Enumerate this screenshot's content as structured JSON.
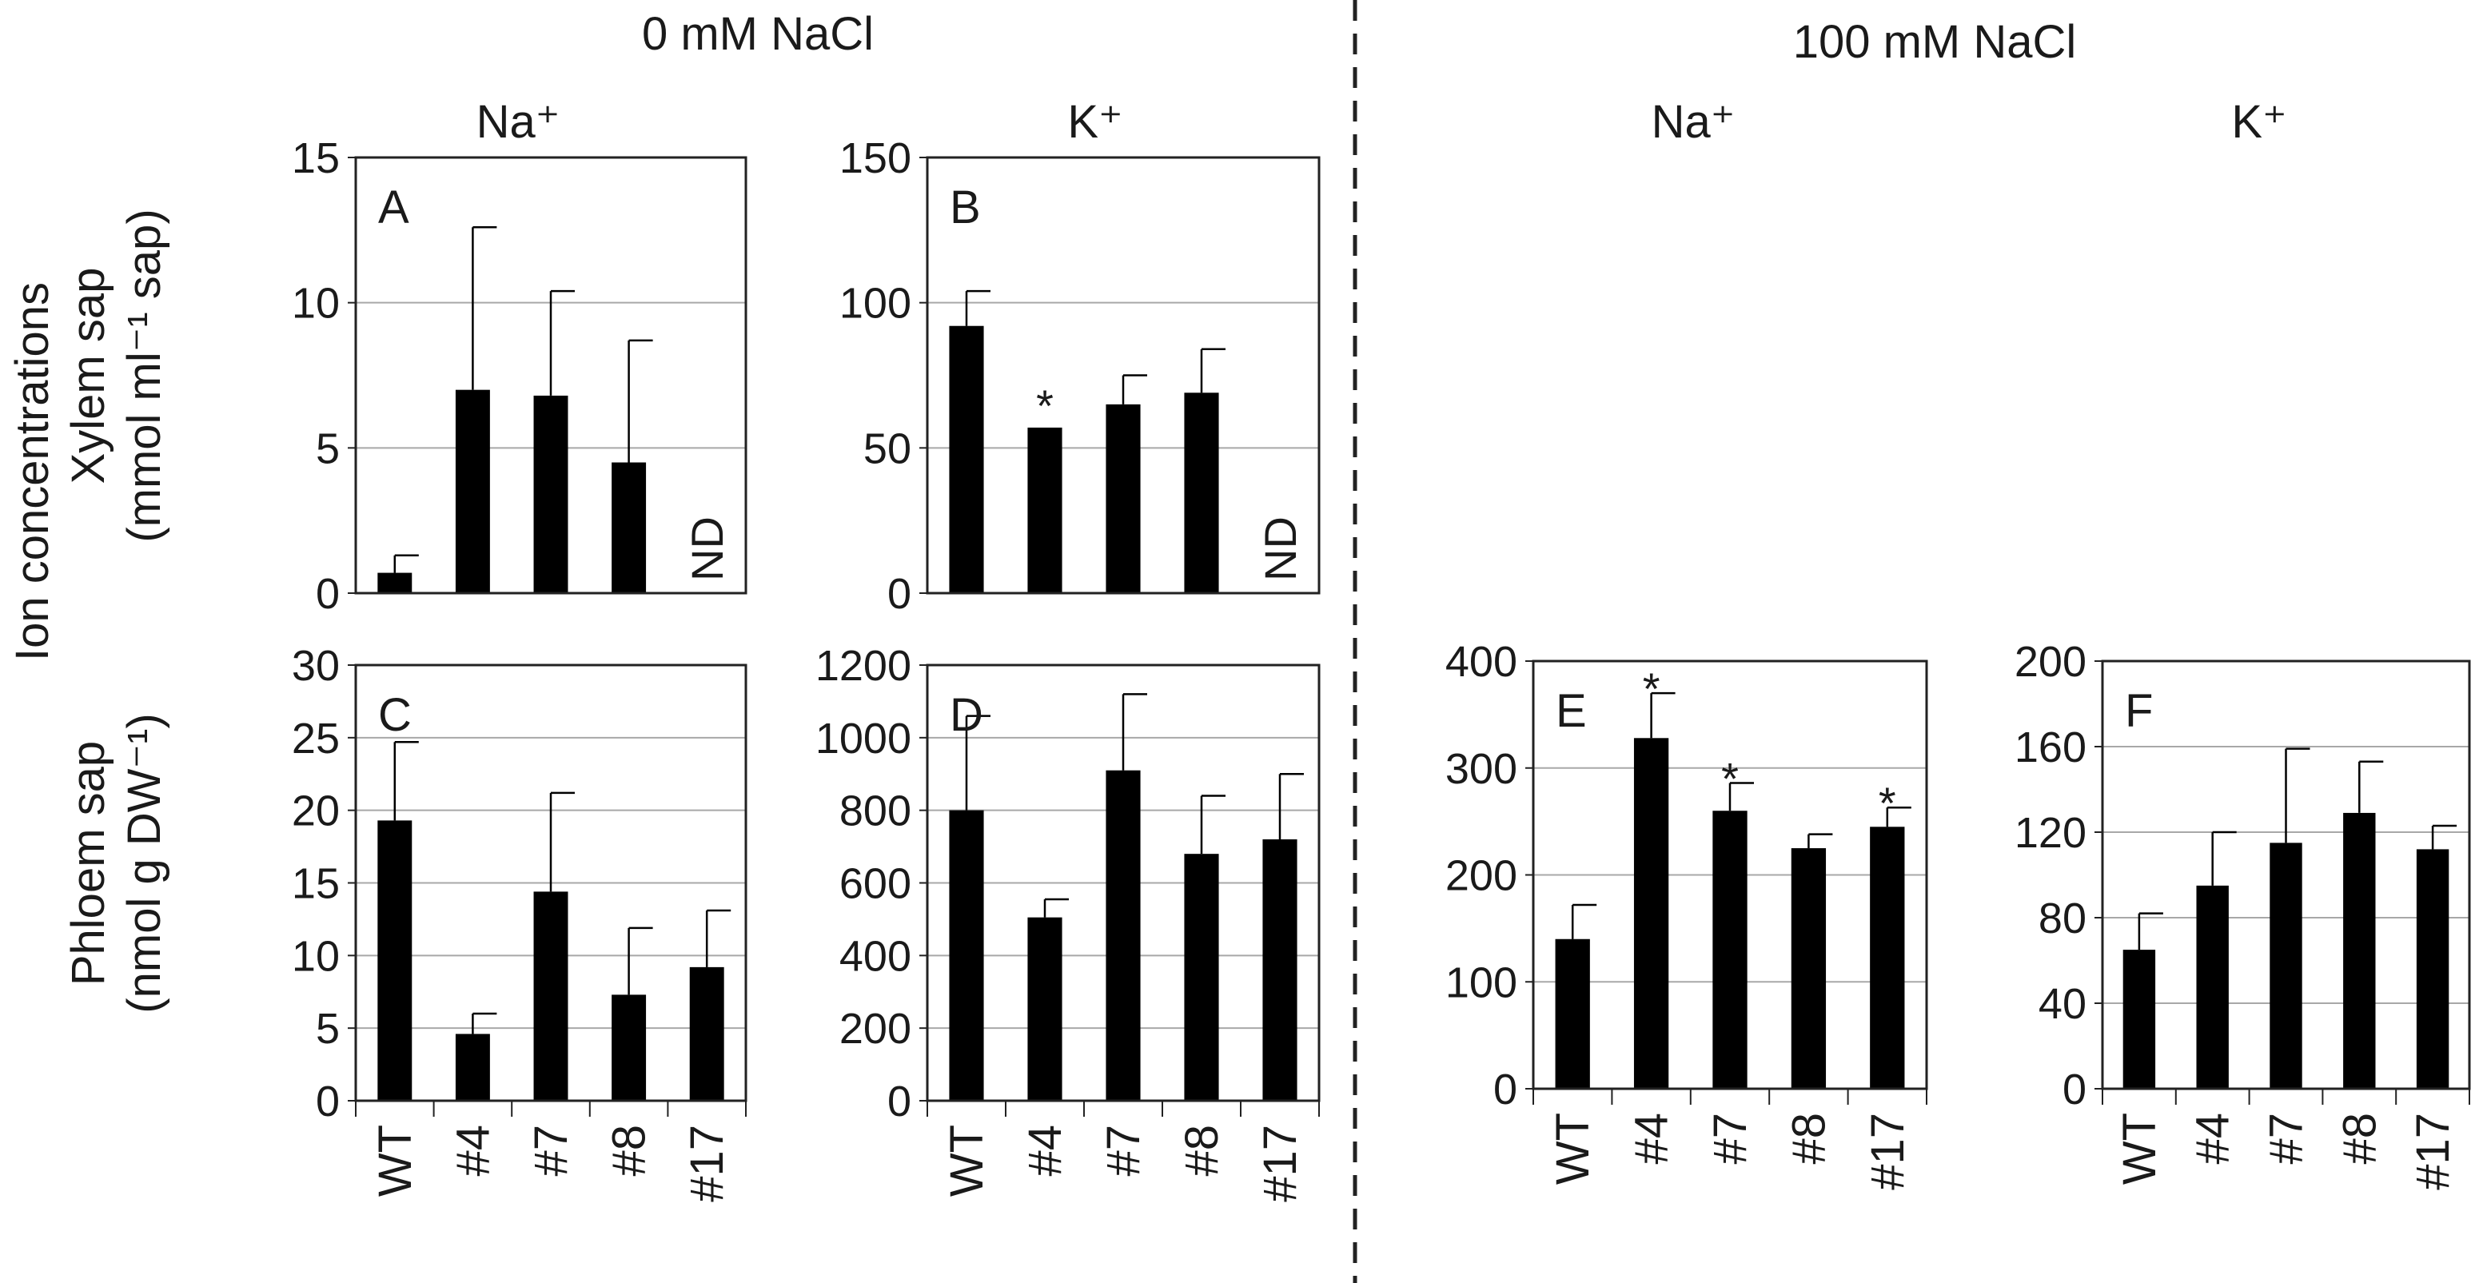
{
  "figure": {
    "conditions": [
      "0 mM NaCl",
      "100 mM NaCl"
    ],
    "ions": [
      "Na⁺",
      "K⁺"
    ],
    "ylabel_outer": "Ion concentrations",
    "ylabel_xylem": [
      "Xylem sap",
      "(mmol ml⁻¹ sap)"
    ],
    "ylabel_phloem": [
      "Phloem sap",
      "(nmol g DW⁻¹)"
    ],
    "categories": [
      "WT",
      "#4",
      "#7",
      "#8",
      "#17"
    ]
  },
  "chart_data": [
    {
      "panel": "A",
      "type": "bar",
      "condition": "0 mM NaCl",
      "ion": "Na⁺",
      "sap": "Xylem sap",
      "categories": [
        "WT",
        "#4",
        "#7",
        "#8",
        "#17"
      ],
      "values": [
        0.7,
        7.0,
        6.8,
        4.5,
        null
      ],
      "errors": [
        0.6,
        5.6,
        3.6,
        4.2,
        null
      ],
      "significant": [
        false,
        false,
        false,
        false,
        false
      ],
      "annotations": [
        null,
        null,
        null,
        null,
        "ND"
      ],
      "ylim": [
        0,
        15
      ],
      "yticks": [
        0,
        5,
        10,
        15
      ],
      "show_categories": false
    },
    {
      "panel": "B",
      "type": "bar",
      "condition": "0 mM NaCl",
      "ion": "K⁺",
      "sap": "Xylem sap",
      "categories": [
        "WT",
        "#4",
        "#7",
        "#8",
        "#17"
      ],
      "values": [
        92,
        57,
        65,
        69,
        null
      ],
      "errors": [
        12,
        0,
        10,
        15,
        null
      ],
      "significant": [
        false,
        true,
        false,
        false,
        false
      ],
      "annotations": [
        null,
        null,
        null,
        null,
        "ND"
      ],
      "ylim": [
        0,
        150
      ],
      "yticks": [
        0,
        50,
        100,
        150
      ],
      "show_categories": false
    },
    {
      "panel": "C",
      "type": "bar",
      "condition": "0 mM NaCl",
      "ion": "Na⁺",
      "sap": "Phloem sap",
      "categories": [
        "WT",
        "#4",
        "#7",
        "#8",
        "#17"
      ],
      "values": [
        19.3,
        4.6,
        14.4,
        7.3,
        9.2
      ],
      "errors": [
        5.4,
        1.4,
        6.8,
        4.6,
        3.9
      ],
      "significant": [
        false,
        false,
        false,
        false,
        false
      ],
      "ylim": [
        0,
        30
      ],
      "yticks": [
        0,
        5,
        10,
        15,
        20,
        25,
        30
      ],
      "show_categories": true
    },
    {
      "panel": "D",
      "type": "bar",
      "condition": "0 mM NaCl",
      "ion": "K⁺",
      "sap": "Phloem sap",
      "categories": [
        "WT",
        "#4",
        "#7",
        "#8",
        "#17"
      ],
      "values": [
        800,
        505,
        910,
        680,
        720
      ],
      "errors": [
        260,
        50,
        210,
        160,
        180
      ],
      "significant": [
        false,
        false,
        false,
        false,
        false
      ],
      "ylim": [
        0,
        1200
      ],
      "yticks": [
        0,
        200,
        400,
        600,
        800,
        1000,
        1200
      ],
      "show_categories": true
    },
    {
      "panel": "E",
      "type": "bar",
      "condition": "100 mM NaCl",
      "ion": "Na⁺",
      "sap": "Phloem sap",
      "categories": [
        "WT",
        "#4",
        "#7",
        "#8",
        "#17"
      ],
      "values": [
        140,
        328,
        260,
        225,
        245
      ],
      "errors": [
        32,
        42,
        26,
        13,
        18
      ],
      "significant": [
        false,
        true,
        true,
        false,
        true
      ],
      "ylim": [
        0,
        400
      ],
      "yticks": [
        0,
        100,
        200,
        300,
        400
      ],
      "show_categories": true
    },
    {
      "panel": "F",
      "type": "bar",
      "condition": "100 mM NaCl",
      "ion": "K⁺",
      "sap": "Phloem sap",
      "categories": [
        "WT",
        "#4",
        "#7",
        "#8",
        "#17"
      ],
      "values": [
        65,
        95,
        115,
        129,
        112
      ],
      "errors": [
        17,
        25,
        44,
        24,
        11
      ],
      "significant": [
        false,
        false,
        false,
        false,
        false
      ],
      "ylim": [
        0,
        200
      ],
      "yticks": [
        0,
        40,
        80,
        120,
        160,
        200
      ],
      "show_categories": true
    }
  ]
}
